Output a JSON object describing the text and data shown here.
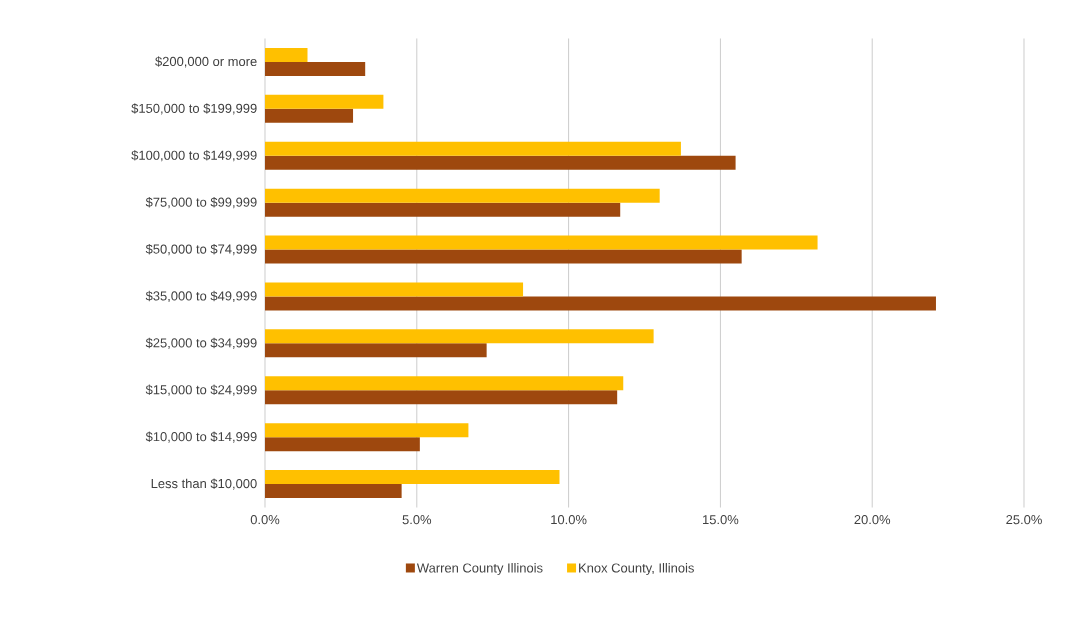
{
  "chart_data": {
    "type": "bar",
    "orientation": "horizontal",
    "categories": [
      "$200,000 or more",
      "$150,000 to $199,999",
      "$100,000 to $149,999",
      "$75,000 to $99,999",
      "$50,000 to $74,999",
      "$35,000 to $49,999",
      "$25,000 to $34,999",
      "$15,000 to $24,999",
      "$10,000 to $14,999",
      "Less than $10,000"
    ],
    "series": [
      {
        "name": "Warren County Illinois",
        "color": "#9e480e",
        "values": [
          3.3,
          2.9,
          15.5,
          11.7,
          15.7,
          22.1,
          7.3,
          11.6,
          5.1,
          4.5
        ]
      },
      {
        "name": "Knox County, Illinois",
        "color": "#ffc000",
        "values": [
          1.4,
          3.9,
          13.7,
          13.0,
          18.2,
          8.5,
          12.8,
          11.8,
          6.7,
          9.7
        ]
      }
    ],
    "xlim": [
      0,
      25
    ],
    "xticks": [
      {
        "value": 0,
        "label": "0.0%"
      },
      {
        "value": 5,
        "label": "5.0%"
      },
      {
        "value": 10,
        "label": "10.0%"
      },
      {
        "value": 15,
        "label": "15.0%"
      },
      {
        "value": 20,
        "label": "20.0%"
      },
      {
        "value": 25,
        "label": "25.0%"
      }
    ],
    "grid": "x",
    "legend": "bottom"
  }
}
